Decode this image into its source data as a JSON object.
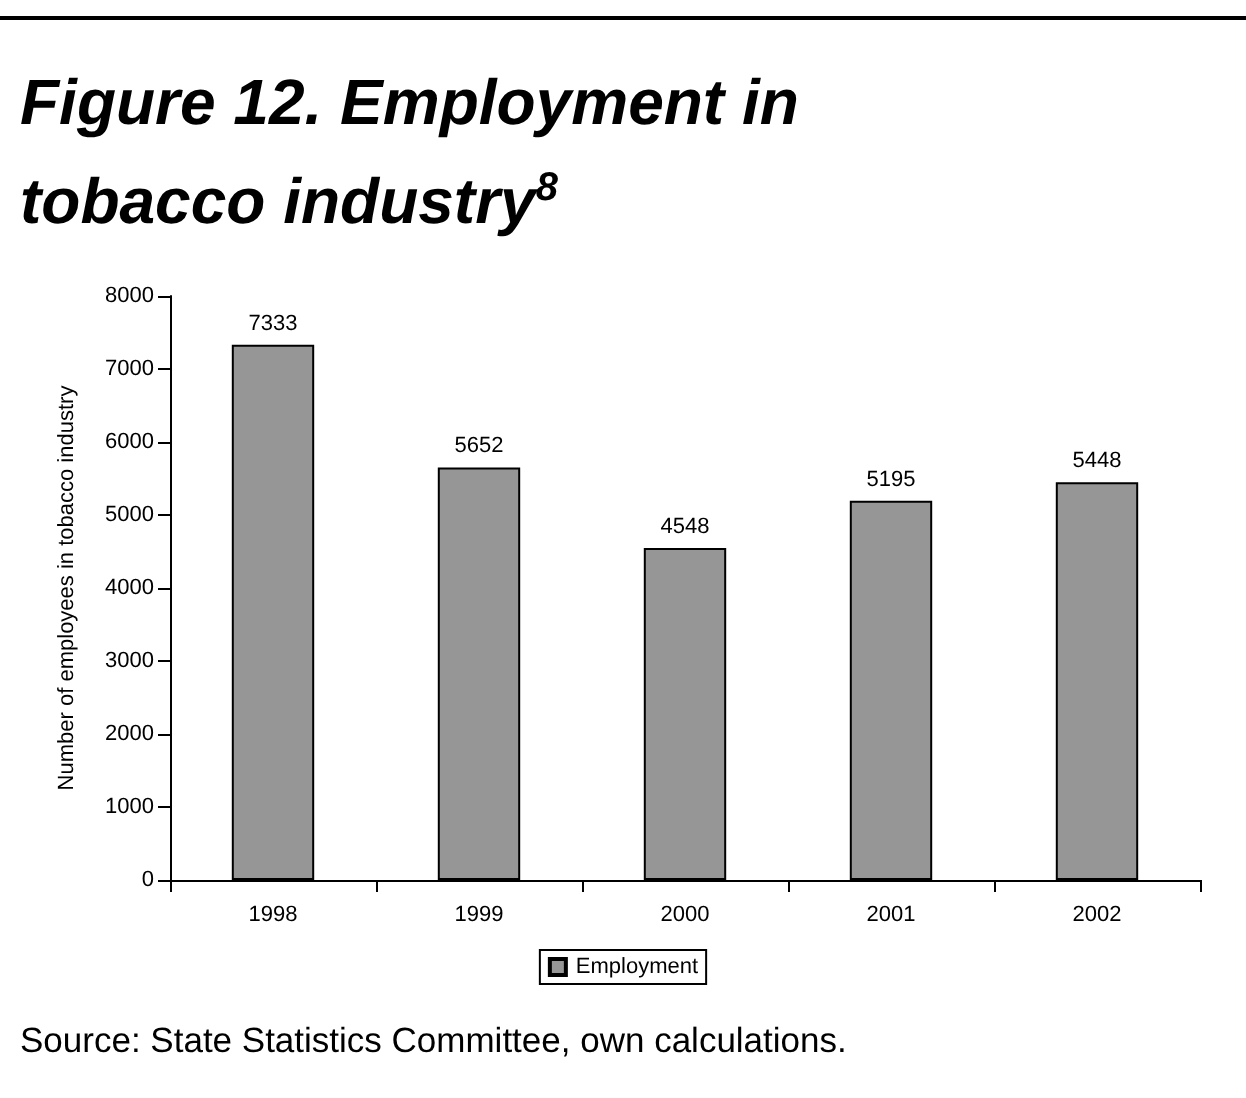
{
  "chart_data": {
    "type": "bar",
    "title": "Figure 12. Employment in tobacco industry$^{8}$",
    "ylabel": "Number of employees in tobacco industry",
    "categories": [
      "1998",
      "1999",
      "2000",
      "2001",
      "2002"
    ],
    "series": [
      {
        "name": "Employment",
        "color": "#969696",
        "values": [
          7333,
          5652,
          4548,
          5195,
          5448
        ]
      }
    ],
    "ylim": [
      0,
      8000
    ],
    "yticks": [
      0,
      1000,
      2000,
      3000,
      4000,
      5000,
      6000,
      7000,
      8000
    ],
    "data_labels": true,
    "grid": false,
    "legend": "bottom",
    "annotations": [
      "Source: State Statistics Committee, own calculations."
    ]
  }
}
